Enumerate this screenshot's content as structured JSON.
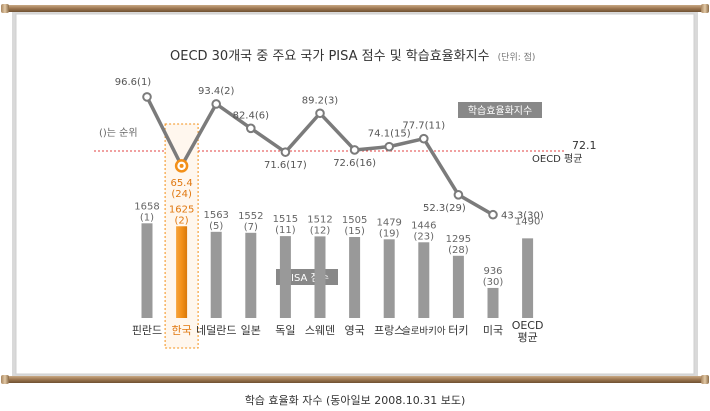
{
  "chart_data": {
    "type": "bar",
    "title": "OECD 30개국 중 주요 국가 PISA 점수 및 학습효율화지수",
    "unit_note": "(단위: 점)",
    "rank_note": "()는 순위",
    "caption": "학습 효율화 자수 (동아일보 2008.10.31 보도)",
    "categories": [
      "핀란드",
      "한국",
      "네덜란드",
      "일본",
      "독일",
      "스웨덴",
      "영국",
      "프랑스",
      "슬로바키아",
      "터키",
      "미국",
      "OECD 평균"
    ],
    "pisa": {
      "label": "PISA 점수",
      "values": [
        1658,
        1625,
        1563,
        1552,
        1515,
        1512,
        1505,
        1479,
        1446,
        1295,
        936,
        1490
      ],
      "ranks": [
        "(1)",
        "(2)",
        "(5)",
        "(7)",
        "(11)",
        "(12)",
        "(15)",
        "(19)",
        "(23)",
        "(28)",
        "(30)",
        ""
      ]
    },
    "efficiency": {
      "label": "학습효율화지수",
      "labels": [
        "96.6(1)",
        "65.4 (24)",
        "93.4(2)",
        "82.4(6)",
        "71.6(17)",
        "89.2(3)",
        "72.6(16)",
        "74.1(15)",
        "77.7(11)",
        "52.3(29)",
        "43.3(30)"
      ],
      "values": [
        96.6,
        65.4,
        93.4,
        82.4,
        71.6,
        89.2,
        72.6,
        74.1,
        77.7,
        52.3,
        43.3
      ]
    },
    "oecd_avg": {
      "value": 72.1,
      "value_label": "72.1",
      "label": "OECD 평균"
    },
    "highlight": "한국",
    "colors": {
      "bar": "#999999",
      "highlight": "#f39018",
      "highlight_text": "#e07810",
      "line": "#7b7b7b",
      "avg_line": "#e04040",
      "label_bg": "#888888"
    }
  }
}
